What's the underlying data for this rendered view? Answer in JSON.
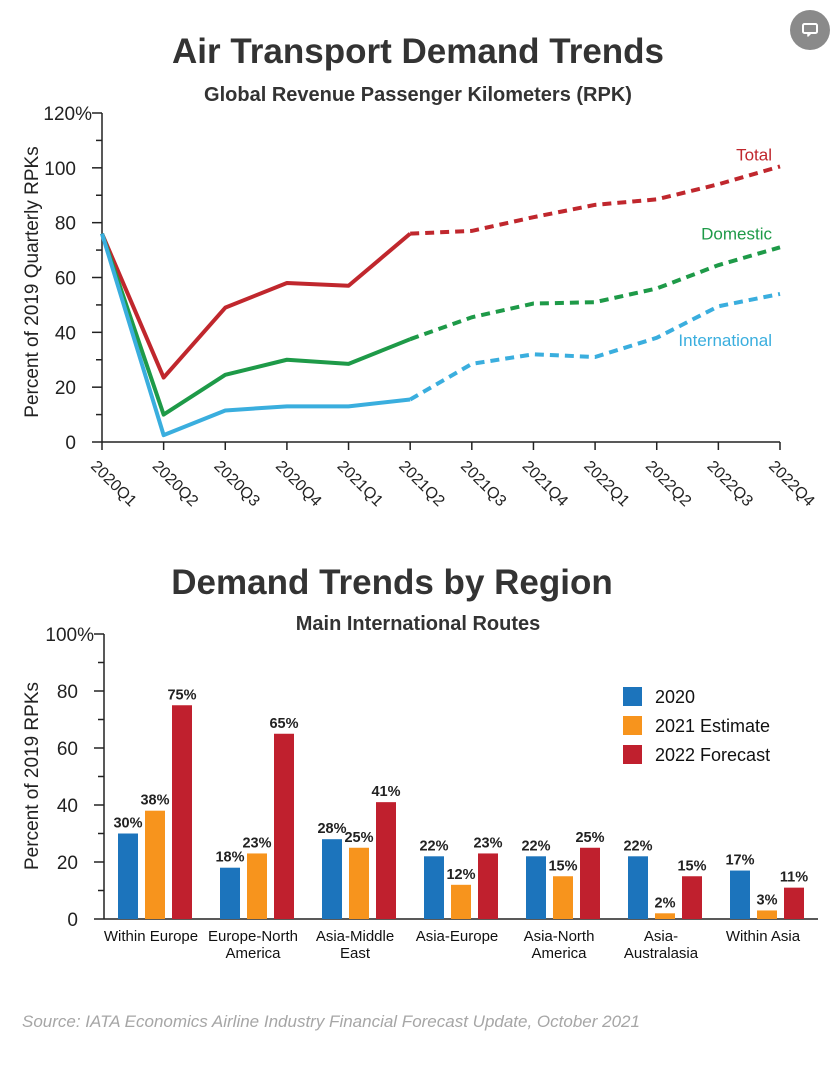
{
  "comment_button": {
    "icon": "comment-icon"
  },
  "chart_data": [
    {
      "type": "line",
      "title": "Air Transport Demand Trends",
      "subtitle": "Global Revenue Passenger Kilometers (RPK)",
      "ylabel": "Percent of 2019 Quarterly RPKs",
      "xlabel": "",
      "ylim": [
        0,
        120
      ],
      "y_ticks": [
        0,
        20,
        40,
        60,
        80,
        100,
        120
      ],
      "y_tick_labels": [
        "0",
        "20",
        "40",
        "60",
        "80",
        "100",
        "120%"
      ],
      "x": [
        "2020Q1",
        "2020Q2",
        "2020Q3",
        "2020Q4",
        "2021Q1",
        "2021Q2",
        "2021Q3",
        "2021Q4",
        "2022Q1",
        "2022Q2",
        "2022Q3",
        "2022Q4"
      ],
      "actual_through": "2021Q2",
      "grid": false,
      "series": [
        {
          "name": "Total",
          "color": "#c0272d",
          "values": [
            76,
            23.5,
            49,
            58,
            57,
            76,
            77,
            82,
            86.5,
            88.5,
            94,
            100.5
          ]
        },
        {
          "name": "Domestic",
          "color": "#1e9a48",
          "values": [
            76,
            10,
            24.5,
            30,
            28.5,
            37.5,
            45.5,
            50.5,
            51,
            56,
            64.5,
            71
          ]
        },
        {
          "name": "International",
          "color": "#3aaede",
          "values": [
            76,
            2.5,
            11.5,
            13,
            13,
            15.5,
            28.5,
            32,
            31,
            38,
            49.5,
            54
          ]
        }
      ]
    },
    {
      "type": "bar",
      "title": "Demand Trends by Region",
      "subtitle": "Main International Routes",
      "ylabel": "Percent of 2019 RPKs",
      "xlabel": "",
      "ylim": [
        0,
        100
      ],
      "y_ticks": [
        0,
        20,
        40,
        60,
        80,
        100
      ],
      "y_tick_labels": [
        "0",
        "20",
        "40",
        "60",
        "80",
        "100%"
      ],
      "categories": [
        [
          "Within Europe"
        ],
        [
          "Europe-North",
          "America"
        ],
        [
          "Asia-Middle",
          "East"
        ],
        [
          "Asia-Europe"
        ],
        [
          "Asia-North",
          "America"
        ],
        [
          "Asia-",
          "Australasia"
        ],
        [
          "Within Asia"
        ]
      ],
      "grid": false,
      "legend_position": "top-right",
      "series": [
        {
          "name": "2020",
          "color": "#1c74bc",
          "values": [
            30,
            18,
            28,
            22,
            22,
            22,
            17
          ],
          "labels": [
            "30%",
            "18%",
            "28%",
            "22%",
            "22%",
            "22%",
            "17%"
          ]
        },
        {
          "name": "2021 Estimate",
          "color": "#f7941d",
          "values": [
            38,
            23,
            25,
            12,
            15,
            2,
            3
          ],
          "labels": [
            "38%",
            "23%",
            "25%",
            "12%",
            "15%",
            "2%",
            "3%"
          ]
        },
        {
          "name": "2022 Forecast",
          "color": "#c0202e",
          "values": [
            75,
            65,
            41,
            23,
            25,
            15,
            11
          ],
          "labels": [
            "75%",
            "65%",
            "41%",
            "23%",
            "25%",
            "15%",
            "11%"
          ]
        }
      ]
    }
  ],
  "source": "Source: IATA Economics Airline Industry Financial Forecast Update, October 2021"
}
